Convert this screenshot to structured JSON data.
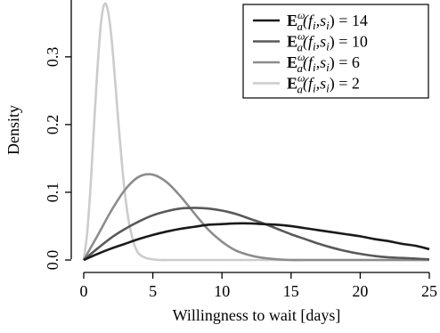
{
  "chart_data": {
    "type": "line",
    "xlabel": "Willingness to wait [days]",
    "ylabel": "Density",
    "xlim": [
      0,
      25
    ],
    "ylim": [
      0,
      0.38
    ],
    "x_ticks": [
      "0",
      "5",
      "10",
      "15",
      "20",
      "25"
    ],
    "y_ticks": [
      "0.0",
      "0.1",
      "0.2",
      "0.3"
    ],
    "grid": false,
    "legend_position": "top-right",
    "series": [
      {
        "name": "𝔼ᵃ(fᵢ,sᵢ) = 14",
        "legend_main": "E",
        "legend_sup": "ω",
        "legend_sub": "a",
        "legend_rest": "(f",
        "legend_i1": "i",
        "legend_mid": ",s",
        "legend_i2": "i",
        "legend_end": ") = 14",
        "color": "#1a1a1a",
        "x": [
          0,
          1,
          2,
          3,
          4,
          5,
          6,
          7,
          8,
          9,
          10,
          11,
          12,
          13,
          14,
          15,
          16,
          17,
          18,
          19,
          20,
          21,
          22,
          23,
          24,
          25
        ],
        "y": [
          0.0,
          0.009,
          0.017,
          0.024,
          0.031,
          0.037,
          0.042,
          0.046,
          0.049,
          0.052,
          0.053,
          0.054,
          0.054,
          0.053,
          0.052,
          0.05,
          0.047,
          0.044,
          0.041,
          0.038,
          0.035,
          0.031,
          0.028,
          0.024,
          0.021,
          0.016
        ]
      },
      {
        "name": "𝔼ᵃ(fᵢ,sᵢ) = 10",
        "legend_main": "E",
        "legend_sup": "ω",
        "legend_sub": "a",
        "legend_rest": "(f",
        "legend_i1": "i",
        "legend_mid": ",s",
        "legend_i2": "i",
        "legend_end": ") = 10",
        "color": "#595959",
        "x": [
          0,
          1,
          2,
          3,
          4,
          5,
          6,
          7,
          8,
          9,
          10,
          11,
          12,
          13,
          14,
          15,
          16,
          17,
          18,
          19,
          20,
          21,
          22,
          23,
          24,
          25
        ],
        "y": [
          0.0,
          0.017,
          0.033,
          0.046,
          0.057,
          0.066,
          0.072,
          0.076,
          0.077,
          0.076,
          0.073,
          0.068,
          0.061,
          0.054,
          0.046,
          0.038,
          0.031,
          0.024,
          0.018,
          0.013,
          0.009,
          0.006,
          0.004,
          0.003,
          0.002,
          0.001
        ]
      },
      {
        "name": "𝔼ᵃ(fᵢ,sᵢ) = 6",
        "legend_main": "E",
        "legend_sup": "ω",
        "legend_sub": "a",
        "legend_rest": "(f",
        "legend_i1": "i",
        "legend_mid": ",s",
        "legend_i2": "i",
        "legend_end": ") = 6",
        "color": "#8c8c8c",
        "x": [
          0,
          1,
          2,
          3,
          4,
          5,
          6,
          7,
          8,
          9,
          10,
          11,
          12,
          13,
          14,
          15,
          16,
          17,
          18,
          19,
          20,
          21,
          22,
          23,
          24,
          25
        ],
        "y": [
          0.0,
          0.036,
          0.073,
          0.104,
          0.123,
          0.126,
          0.115,
          0.094,
          0.069,
          0.045,
          0.027,
          0.014,
          0.007,
          0.003,
          0.001,
          0.0,
          0.0,
          0.0,
          0.0,
          0.0,
          0.0,
          0.0,
          0.0,
          0.0,
          0.0,
          0.0
        ]
      },
      {
        "name": "𝔼ᵃ(fᵢ,sᵢ) = 2",
        "legend_main": "E",
        "legend_sup": "ω",
        "legend_sub": "a",
        "legend_rest": "(f",
        "legend_i1": "i",
        "legend_mid": ",s",
        "legend_i2": "i",
        "legend_end": ") = 2",
        "color": "#cccccc",
        "x": [
          0,
          0.25,
          0.5,
          0.75,
          1,
          1.25,
          1.5,
          1.75,
          2,
          2.25,
          2.5,
          2.75,
          3,
          3.25,
          3.5,
          3.75,
          4,
          4.5,
          5,
          5.5,
          6,
          7,
          8,
          10,
          15,
          20,
          25
        ],
        "y": [
          0.0,
          0.04,
          0.11,
          0.2,
          0.285,
          0.35,
          0.378,
          0.368,
          0.33,
          0.27,
          0.205,
          0.145,
          0.095,
          0.058,
          0.034,
          0.018,
          0.009,
          0.003,
          0.001,
          0.0,
          0.0,
          0.0,
          0.0,
          0.0,
          0.0,
          0.0,
          0.0
        ]
      }
    ]
  }
}
